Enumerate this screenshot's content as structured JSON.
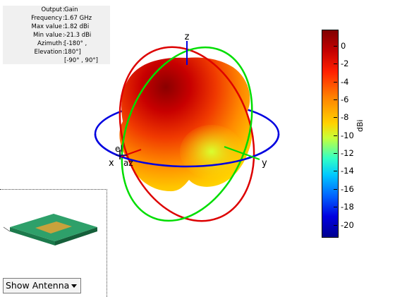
{
  "info": {
    "rows": [
      {
        "label": "Output",
        "value": "Gain"
      },
      {
        "label": "Frequency",
        "value": "1.67 GHz"
      },
      {
        "label": "Max value",
        "value": "1.82 dBi"
      },
      {
        "label": "Min value",
        "value": "-21.3 dBi"
      },
      {
        "label": "Azimuth",
        "value": "[-180° ,"
      },
      {
        "label": "Elevation",
        "value": "180°]"
      },
      {
        "label": "",
        "value": "[-90° , 90°]"
      }
    ]
  },
  "axes": {
    "z": "z",
    "y": "y",
    "x": "x",
    "el": "el",
    "az": "az"
  },
  "colorbar": {
    "label": "dBi",
    "min": -21.3,
    "max": 1.82,
    "ticks": [
      "0",
      "-2",
      "-4",
      "-6",
      "-8",
      "-10",
      "-12",
      "-14",
      "-16",
      "-18",
      "-20"
    ],
    "colormap": "jet"
  },
  "controls": {
    "show_antenna": "Show Antenna"
  },
  "colors": {
    "azimuth_ring": "#0000e0",
    "elevation_ring_x": "#dd0000",
    "elevation_ring_y": "#00dd00",
    "patch": "#2ea06a",
    "feed": "#c8a23c"
  }
}
